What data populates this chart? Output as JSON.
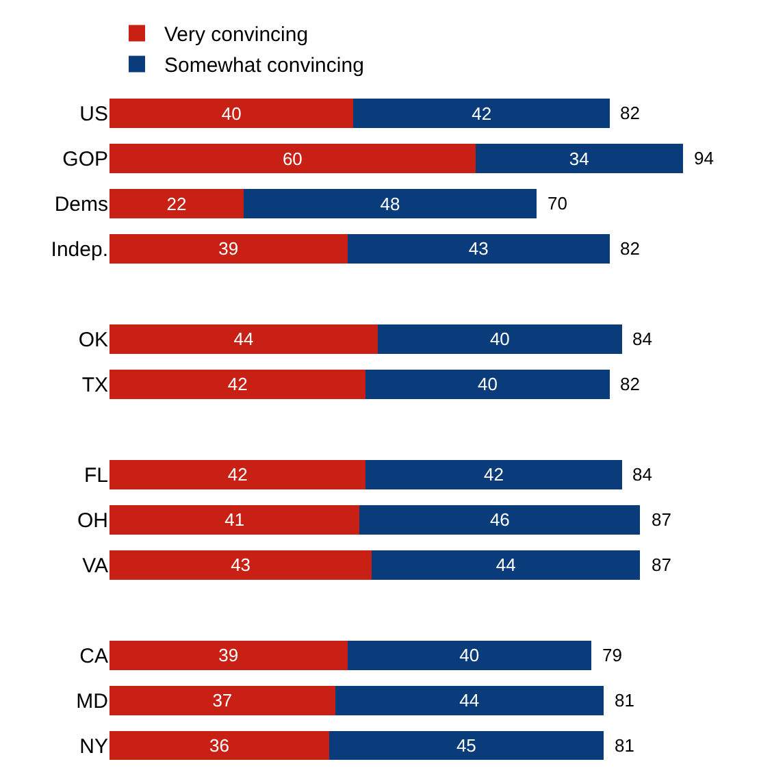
{
  "chart_data": {
    "type": "bar",
    "orientation": "horizontal",
    "stacked": true,
    "data_labels": true,
    "legend": "top",
    "categories": [
      "US",
      "GOP",
      "Dems",
      "Indep.",
      null,
      "OK",
      "TX",
      null,
      "FL",
      "OH",
      "VA",
      null,
      "CA",
      "MD",
      "NY"
    ],
    "series": [
      {
        "name": "Very convincing",
        "color": "#c82014",
        "values": [
          40,
          60,
          22,
          39,
          null,
          44,
          42,
          null,
          42,
          41,
          43,
          null,
          39,
          37,
          36
        ]
      },
      {
        "name": "Somewhat convincing",
        "color": "#0a3c7c",
        "values": [
          42,
          34,
          48,
          43,
          null,
          40,
          40,
          null,
          42,
          46,
          44,
          null,
          40,
          44,
          45
        ]
      }
    ],
    "totals": [
      "82",
      "94",
      "70",
      "82",
      null,
      "84",
      "82",
      null,
      "84",
      "87",
      "87",
      null,
      "79",
      "81",
      "81"
    ]
  }
}
